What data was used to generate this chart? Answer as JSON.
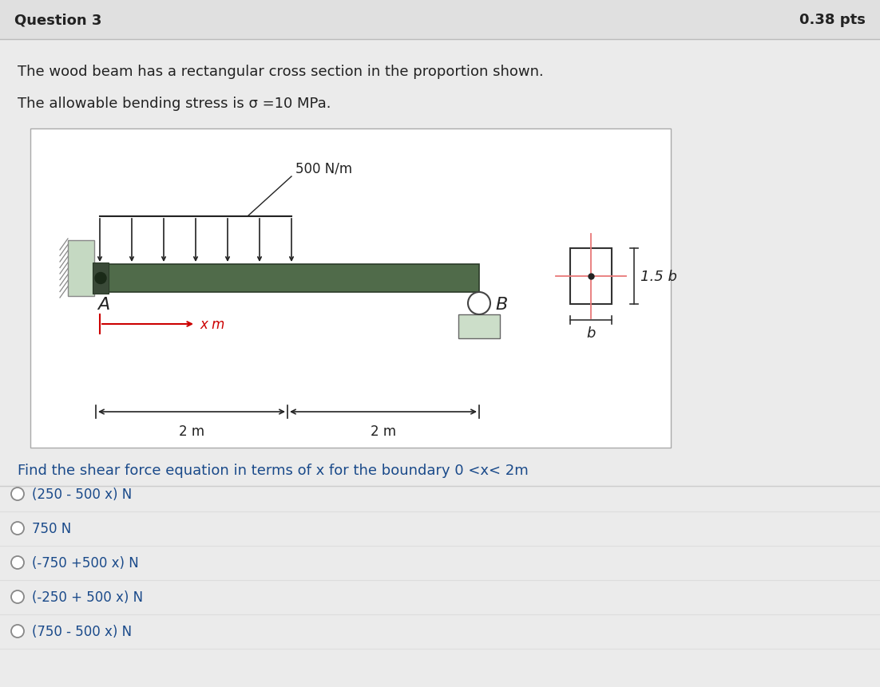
{
  "bg_color": "#ebebeb",
  "white": "#ffffff",
  "header_text": "Question 3",
  "pts_text": "0.38 pts",
  "line1": "The wood beam has a rectangular cross section in the proportion shown.",
  "line2": "The allowable bending stress is σ =10 MPa.",
  "load_label": "500 N/m",
  "label_A": "A",
  "label_B": "B",
  "label_xm": "x m",
  "label_2m_left": "2 m",
  "label_2m_right": "2 m",
  "label_1p5b": "1.5 b",
  "label_b": "b",
  "question_text": "Find the shear force equation in terms of x for the boundary 0 <x< 2m",
  "options": [
    "(250 - 500 x) N",
    "750 N",
    "(-750 +500 x) N",
    "(-250 + 500 x) N",
    "(750 - 500 x) N"
  ],
  "beam_color": "#506b4a",
  "beam_edge": "#2a3a28",
  "wall_color": "#c5d9c2",
  "wall_dark": "#8aaa85",
  "support_color": "#ccdec9",
  "red_color": "#cc0000",
  "pink_color": "#e87878",
  "text_dark": "#222222",
  "text_blue": "#1a4a8a",
  "text_option": "#1a4a8a",
  "divider_color": "#cccccc",
  "header_bg": "#e0e0e0"
}
